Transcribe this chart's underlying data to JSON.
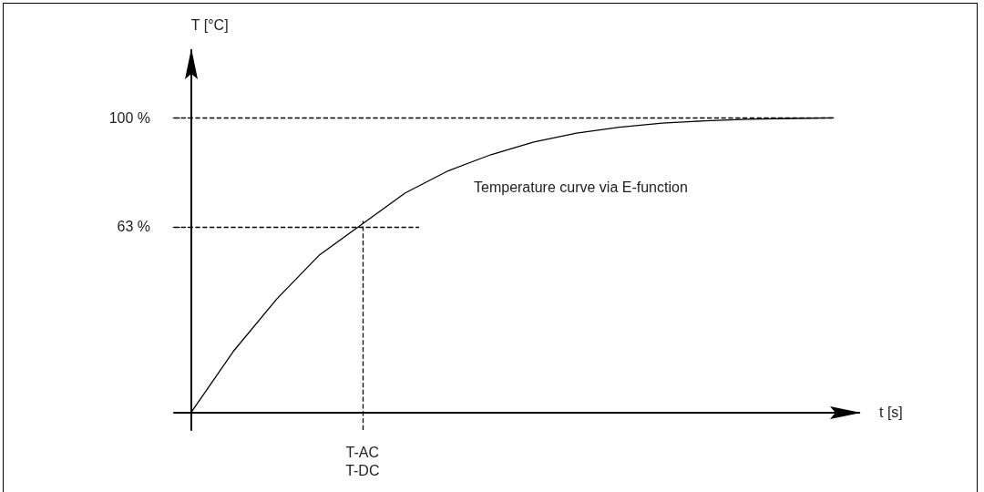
{
  "chart_data": {
    "type": "line",
    "xlabel": "t [s]",
    "ylabel": "T [°C]",
    "categories": [
      null,
      null,
      null,
      null,
      "T-AC\nT-DC",
      null,
      null,
      null,
      null,
      null,
      null,
      null,
      null,
      null,
      null,
      null
    ],
    "series": [
      {
        "color": "#000000",
        "values": [
          0,
          21,
          38.5,
          53.5,
          64,
          74.5,
          82,
          87.5,
          91.8,
          94.8,
          96.8,
          98.2,
          99,
          99.5,
          99.8,
          100
        ]
      }
    ],
    "ylim": [
      -6,
      123
    ],
    "yticks": [
      {
        "value": 63,
        "label": "63 %"
      },
      {
        "value": 100,
        "label": "100 %"
      }
    ],
    "ref_lines": [
      {
        "axis": "y",
        "value": 100,
        "line_style": "dashed",
        "color": "#000000"
      },
      {
        "axis": "y",
        "value": 63,
        "line_style": "dashed",
        "color": "#000000"
      },
      {
        "axis": "x",
        "value": "T-AC\nT-DC",
        "line_style": "dashed",
        "color": "#000000"
      }
    ],
    "annotations": [
      "Temperature curve via E-function"
    ],
    "grid": false,
    "marker": "none",
    "line_style": "solid"
  }
}
